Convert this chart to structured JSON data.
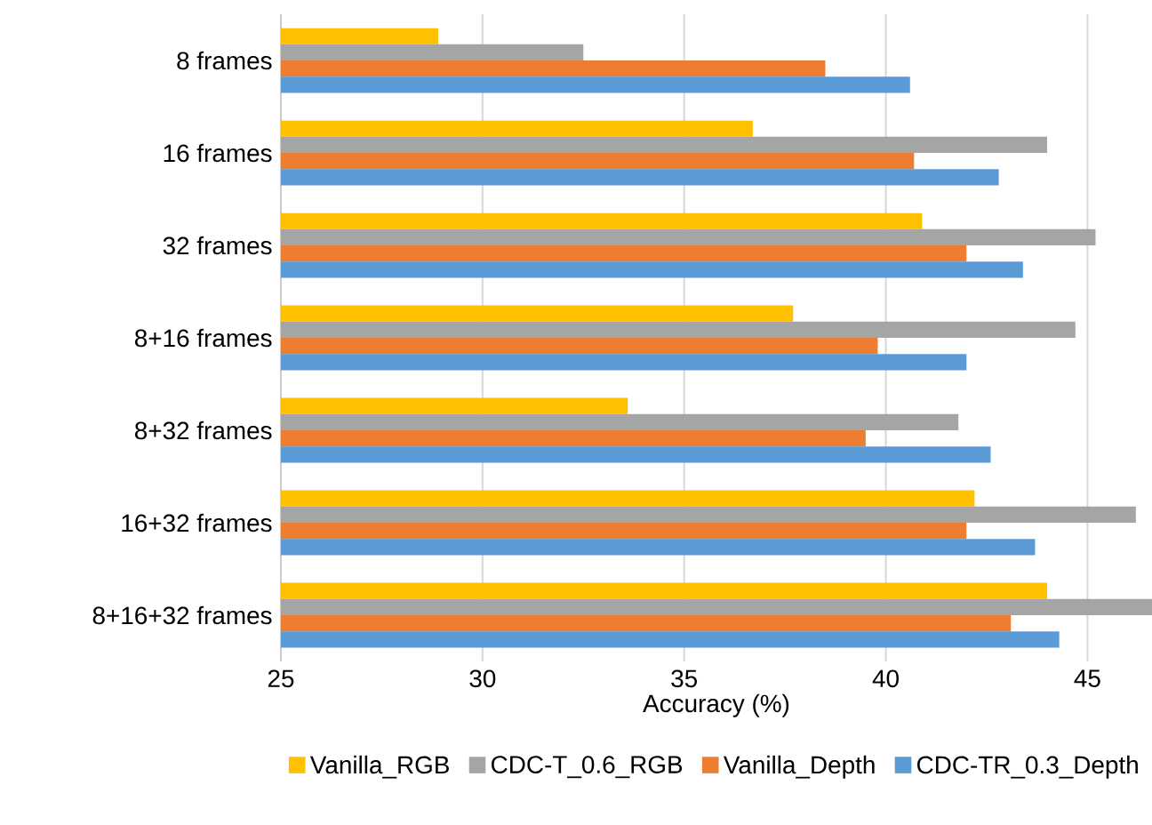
{
  "chart_data": {
    "type": "bar",
    "orientation": "horizontal",
    "xlabel": "Accuracy (%)",
    "categories": [
      "8 frames",
      "16 frames",
      "32 frames",
      "8+16 frames",
      "8+32 frames",
      "16+32 frames",
      "8+16+32 frames"
    ],
    "series": [
      {
        "name": "Vanilla_RGB",
        "color": "#ffc000",
        "values": [
          28.9,
          36.7,
          40.9,
          37.7,
          33.6,
          42.2,
          44.0
        ]
      },
      {
        "name": "CDC-T_0.6_RGB",
        "color": "#a5a5a5",
        "values": [
          32.5,
          44.0,
          45.2,
          44.7,
          41.8,
          46.2,
          46.6
        ]
      },
      {
        "name": "Vanilla_Depth",
        "color": "#ed7d31",
        "values": [
          38.5,
          40.7,
          42.0,
          39.8,
          39.5,
          42.0,
          43.1
        ]
      },
      {
        "name": "CDC-TR_0.3_Depth",
        "color": "#5b9bd5",
        "values": [
          40.6,
          42.8,
          43.4,
          42.0,
          42.6,
          43.7,
          44.3
        ]
      }
    ],
    "xlim": [
      25,
      46.6
    ],
    "xticks": [
      25,
      30,
      35,
      40,
      45
    ],
    "grid": "x",
    "legend": "bottom"
  }
}
